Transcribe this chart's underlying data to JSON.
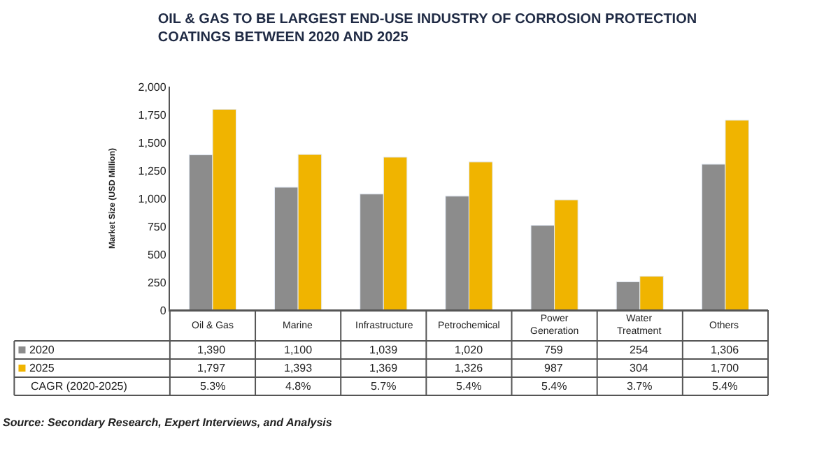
{
  "chart_data": {
    "type": "bar",
    "title": "OIL & GAS TO BE LARGEST END-USE INDUSTRY OF CORROSION PROTECTION\nCOATINGS BETWEEN 2020 AND 2025",
    "ylabel": "Market Size (USD Million)",
    "categories": [
      "Oil & Gas",
      "Marine",
      "Infrastructure",
      "Petrochemical",
      "Power Generation",
      "Water Treatment",
      "Others"
    ],
    "series": [
      {
        "name": "2020",
        "color": "#8c8c8c",
        "values": [
          1390,
          1100,
          1039,
          1020,
          759,
          254,
          1306
        ],
        "value_labels": [
          "1,390",
          "1,100",
          "1,039",
          "1,020",
          "759",
          "254",
          "1,306"
        ]
      },
      {
        "name": "2025",
        "color": "#f0b400",
        "values": [
          1797,
          1393,
          1369,
          1326,
          987,
          304,
          1700
        ],
        "value_labels": [
          "1,797",
          "1,393",
          "1,369",
          "1,326",
          "987",
          "304",
          "1,700"
        ]
      }
    ],
    "ylim": [
      0,
      2000
    ],
    "yticks": [
      0,
      250,
      500,
      750,
      {
        "value": 1000,
        "label": "1,000"
      },
      {
        "value": 1250,
        "label": "1,250"
      },
      {
        "value": 1500,
        "label": "1,500"
      },
      {
        "value": 1750,
        "label": "1,750"
      },
      {
        "value": 2000,
        "label": "2,000"
      }
    ],
    "legend": "bottom left",
    "annotations": [
      "CAGR (2020-2025)",
      "5.3%",
      "4.8%",
      "5.7%",
      "5.4%",
      "5.4%",
      "3.7%",
      "5.4%",
      "Source: Secondary Research, Expert Interviews, and Analysis"
    ]
  }
}
